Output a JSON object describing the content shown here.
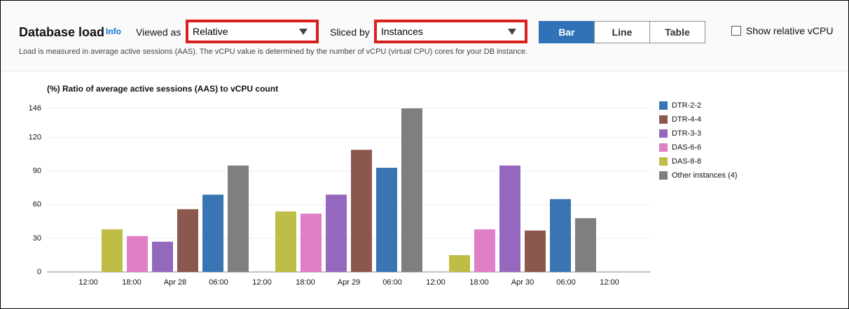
{
  "header": {
    "title": "Database load",
    "info": "Info",
    "viewed_as_label": "Viewed as",
    "viewed_as_value": "Relative",
    "sliced_by_label": "Sliced by",
    "sliced_by_value": "Instances",
    "view_buttons": [
      "Bar",
      "Line",
      "Table"
    ],
    "checkbox_label": "Show relative vCPU",
    "description": "Load is measured in average active sessions (AAS). The vCPU value is determined by the number of vCPU (virtual CPU) cores for your DB instance."
  },
  "chart_data": {
    "type": "bar",
    "title": "(%) Ratio of average active sessions (AAS) to vCPU count",
    "categories": [
      null,
      null,
      null
    ],
    "x_labels": [
      "12:00",
      "18:00",
      "Apr 28",
      "06:00",
      "12:00",
      "18:00",
      "Apr 29",
      "06:00",
      "12:00",
      "18:00",
      "Apr 30",
      "06:00",
      "12:00"
    ],
    "ylim": [
      0,
      146
    ],
    "yticks": [
      0,
      30,
      60,
      90,
      120,
      146
    ],
    "grid": true,
    "series": [
      {
        "name": "DTR-2-2",
        "color": "#3a75b3",
        "values": [
          69,
          93,
          65
        ]
      },
      {
        "name": "DTR-4-4",
        "color": "#8c574c",
        "values": [
          56,
          109,
          37
        ]
      },
      {
        "name": "DTR-3-3",
        "color": "#9469bd",
        "values": [
          27,
          69,
          95
        ]
      },
      {
        "name": "DAS-6-6",
        "color": "#e07ec6",
        "values": [
          32,
          52,
          38
        ]
      },
      {
        "name": "DAS-8-8",
        "color": "#bebd45",
        "values": [
          38,
          54,
          15
        ]
      },
      {
        "name": "Other instances (4)",
        "color": "#7f7f7f",
        "values": [
          95,
          146,
          48
        ]
      }
    ]
  }
}
